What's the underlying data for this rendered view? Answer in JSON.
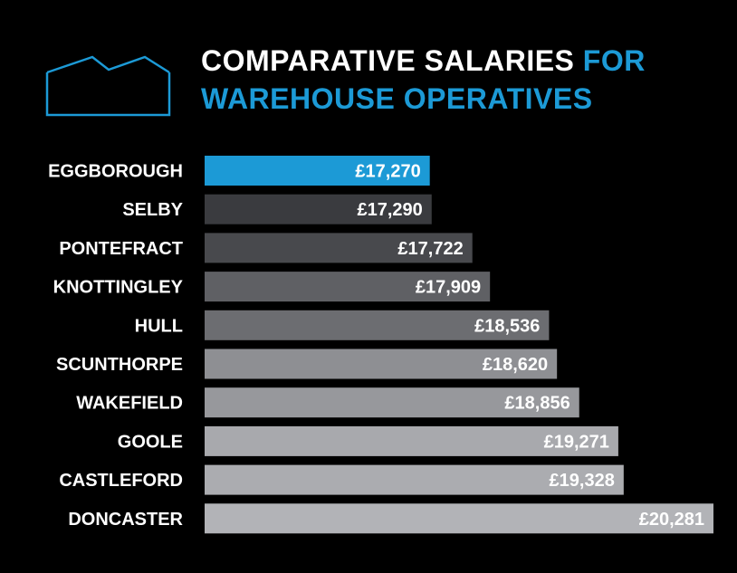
{
  "header": {
    "title_part1": "COMPARATIVE SALARIES",
    "title_part2": "FOR WAREHOUSE OPERATIVES",
    "logo_icon": "house-outline-icon",
    "accent_color": "#1c9ad6"
  },
  "chart_data": {
    "type": "bar",
    "orientation": "horizontal",
    "title": "COMPARATIVE SALARIES FOR WAREHOUSE OPERATIVES",
    "xlabel": "",
    "ylabel": "",
    "categories": [
      "EGGBOROUGH",
      "SELBY",
      "PONTEFRACT",
      "KNOTTINGLEY",
      "HULL",
      "SCUNTHORPE",
      "WAKEFIELD",
      "GOOLE",
      "CASTLEFORD",
      "DONCASTER"
    ],
    "values": [
      17270,
      17290,
      17722,
      17909,
      18536,
      18620,
      18856,
      19271,
      19328,
      20281
    ],
    "value_labels": [
      "£17,270",
      "£17,290",
      "£17,722",
      "£17,909",
      "£18,536",
      "£18,620",
      "£18,856",
      "£19,271",
      "£19,328",
      "£20,281"
    ],
    "colors": [
      "#1c9ad6",
      "#3a3b3f",
      "#48494d",
      "#5f6064",
      "#6c6d71",
      "#8e8f93",
      "#97989c",
      "#a8a9ad",
      "#abacb0",
      "#b2b3b7"
    ],
    "grid": false,
    "legend": "none"
  }
}
